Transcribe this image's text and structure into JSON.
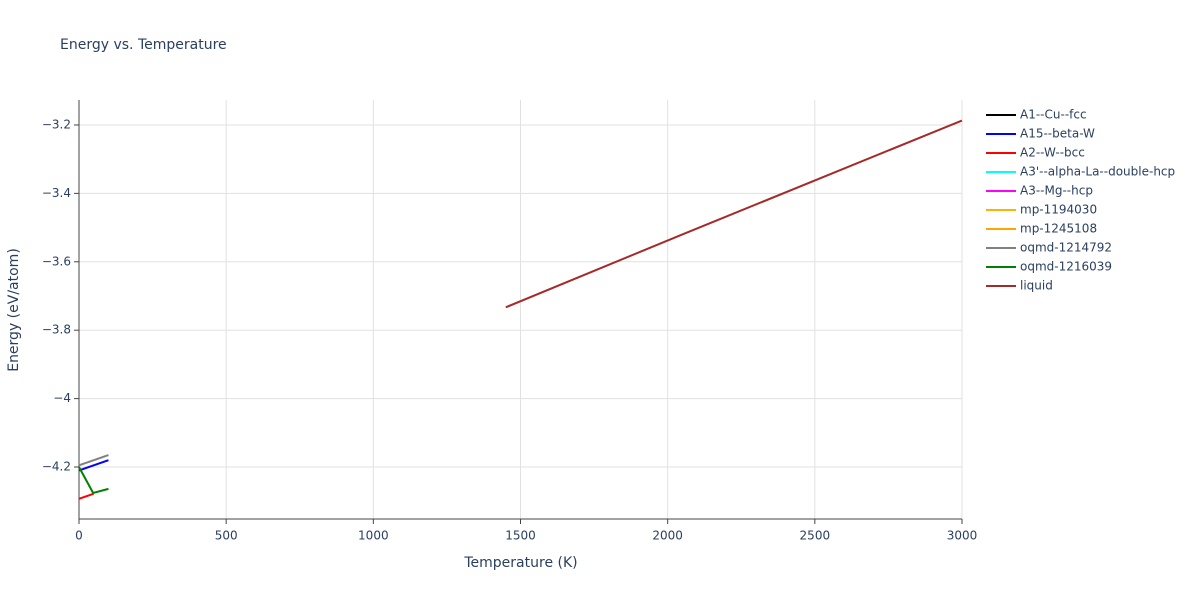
{
  "chart_data": {
    "type": "line",
    "title": "Energy vs. Temperature",
    "x_label": "Temperature (K)",
    "y_label": "Energy (eV/atom)",
    "xlim": [
      0,
      3000
    ],
    "xticks": [
      0,
      500,
      1000,
      1500,
      2000,
      2500,
      3000
    ],
    "ylim": [
      -4.352,
      -3.127
    ],
    "yticks": [
      {
        "value": -4.2,
        "label": "−4.2"
      },
      {
        "value": -4,
        "label": "−4"
      },
      {
        "value": -3.8,
        "label": "−3.8"
      },
      {
        "value": -3.6,
        "label": "−3.6"
      },
      {
        "value": -3.4,
        "label": "−3.4"
      },
      {
        "value": -3.2,
        "label": "−3.2"
      }
    ],
    "grid": true,
    "legend": "right",
    "series": [
      {
        "name": "A1--Cu--fcc",
        "color": "#000000",
        "x": [],
        "values": []
      },
      {
        "name": "A15--beta-W",
        "color": "#0000ff",
        "x": [
          0,
          100
        ],
        "values": [
          -4.21,
          -4.18
        ]
      },
      {
        "name": "A2--W--bcc",
        "color": "#ff0000",
        "x": [
          0,
          50
        ],
        "values": [
          -4.293,
          -4.278
        ]
      },
      {
        "name": "A3'--alpha-La--double-hcp",
        "color": "#00ffff",
        "x": [],
        "values": []
      },
      {
        "name": "A3--Mg--hcp",
        "color": "#ff00ff",
        "x": [],
        "values": []
      },
      {
        "name": "mp-1194030",
        "color": "#ffb300",
        "x": [],
        "values": []
      },
      {
        "name": "mp-1245108",
        "color": "#ffa500",
        "x": [],
        "values": []
      },
      {
        "name": "oqmd-1214792",
        "color": "#808080",
        "x": [
          0,
          100
        ],
        "values": [
          -4.195,
          -4.165
        ]
      },
      {
        "name": "oqmd-1216039",
        "color": "#008000",
        "x": [
          0,
          48,
          100
        ],
        "values": [
          -4.2,
          -4.276,
          -4.264
        ]
      },
      {
        "name": "liquid",
        "color": "#a52a2a",
        "x": [
          1450,
          2050,
          3000
        ],
        "values": [
          -3.733,
          -3.52,
          -3.187
        ]
      }
    ]
  }
}
